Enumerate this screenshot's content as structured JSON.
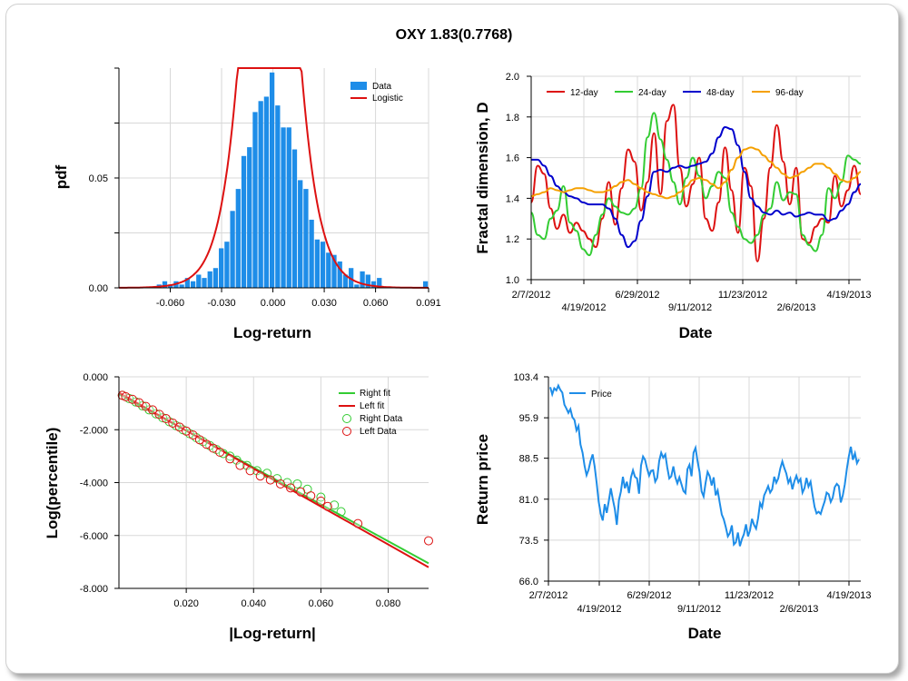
{
  "title": "OXY 1.83(0.7768)",
  "colors": {
    "blue": "#1e8de8",
    "red": "#dd1111",
    "green": "#33cc33",
    "navy": "#0000cc",
    "orange": "#f5a000"
  },
  "chart_data": [
    {
      "type": "bar",
      "panel": "histogram",
      "xlabel": "Log-return",
      "ylabel": "pdf",
      "xlim": [
        -0.09,
        0.091
      ],
      "ylim": [
        0,
        0.1
      ],
      "xticks": [
        -0.06,
        -0.03,
        0.0,
        0.03,
        0.06,
        0.091
      ],
      "xtick_labels": [
        "-0.060",
        "-0.030",
        "0.000",
        "0.030",
        "0.060",
        "0.091"
      ],
      "yticks": [
        0.0,
        0.05
      ],
      "ytick_labels": [
        "0.00",
        "0.05"
      ],
      "legend": [
        "Data",
        "Logistic"
      ],
      "bin_width": 0.0033,
      "bin_centers": [
        -0.0665,
        -0.0632,
        -0.0599,
        -0.0566,
        -0.0533,
        -0.05,
        -0.0467,
        -0.0434,
        -0.0401,
        -0.0368,
        -0.0335,
        -0.0302,
        -0.0269,
        -0.0236,
        -0.0203,
        -0.017,
        -0.0137,
        -0.0104,
        -0.0071,
        -0.0038,
        -0.0005,
        0.0028,
        0.0061,
        0.0094,
        0.0127,
        0.016,
        0.0193,
        0.0226,
        0.0259,
        0.0292,
        0.0325,
        0.0358,
        0.0391,
        0.0424,
        0.0457,
        0.049,
        0.0523,
        0.0556,
        0.0589,
        0.0622,
        0.0892
      ],
      "values": [
        0.0015,
        0.003,
        0.0015,
        0.003,
        0.0015,
        0.0045,
        0.003,
        0.006,
        0.0045,
        0.0075,
        0.009,
        0.018,
        0.021,
        0.035,
        0.045,
        0.06,
        0.064,
        0.08,
        0.085,
        0.087,
        0.098,
        0.083,
        0.073,
        0.073,
        0.063,
        0.049,
        0.045,
        0.031,
        0.022,
        0.021,
        0.016,
        0.015,
        0.012,
        0.006,
        0.009,
        0.0015,
        0.0075,
        0.006,
        0.003,
        0.0045,
        0.003
      ],
      "fit": {
        "name": "Logistic",
        "mu": -0.002,
        "s": 0.0085
      }
    },
    {
      "type": "line",
      "panel": "fractal",
      "xlabel": "Date",
      "ylabel": "Fractal dimension, D",
      "ylim": [
        1.0,
        2.0
      ],
      "yticks": [
        1.0,
        1.2,
        1.4,
        1.6,
        1.8,
        2.0
      ],
      "ytick_labels": [
        "1.0",
        "1.2",
        "1.4",
        "1.6",
        "1.8",
        "2.0"
      ],
      "date_labels_upper": [
        "2/7/2012",
        "6/29/2012",
        "11/23/2012",
        "4/19/2013"
      ],
      "date_labels_lower": [
        "4/19/2012",
        "9/11/2012",
        "2/6/2013"
      ],
      "series": [
        {
          "name": "12-day",
          "color": "red",
          "values": [
            1.38,
            1.56,
            1.52,
            1.35,
            1.25,
            1.32,
            1.23,
            1.28,
            1.24,
            1.2,
            1.16,
            1.3,
            1.48,
            1.27,
            1.45,
            1.64,
            1.58,
            1.34,
            1.48,
            1.72,
            1.42,
            1.78,
            1.86,
            1.55,
            1.36,
            1.47,
            1.6,
            1.3,
            1.24,
            1.38,
            1.65,
            1.44,
            1.23,
            1.55,
            1.46,
            1.09,
            1.3,
            1.55,
            1.76,
            1.58,
            1.37,
            1.55,
            1.2,
            1.18,
            1.26,
            1.3,
            1.28,
            1.51,
            1.36,
            1.44,
            1.56,
            1.42
          ]
        },
        {
          "name": "24-day",
          "color": "green",
          "values": [
            1.33,
            1.22,
            1.2,
            1.3,
            1.34,
            1.46,
            1.28,
            1.24,
            1.15,
            1.12,
            1.22,
            1.32,
            1.4,
            1.36,
            1.33,
            1.32,
            1.35,
            1.45,
            1.7,
            1.82,
            1.69,
            1.59,
            1.48,
            1.37,
            1.5,
            1.6,
            1.51,
            1.4,
            1.46,
            1.53,
            1.5,
            1.33,
            1.26,
            1.2,
            1.18,
            1.22,
            1.32,
            1.35,
            1.48,
            1.39,
            1.43,
            1.42,
            1.22,
            1.17,
            1.14,
            1.22,
            1.45,
            1.4,
            1.48,
            1.61,
            1.59,
            1.57
          ]
        },
        {
          "name": "48-day",
          "color": "navy",
          "values": [
            1.59,
            1.59,
            1.56,
            1.51,
            1.46,
            1.43,
            1.41,
            1.4,
            1.38,
            1.37,
            1.37,
            1.37,
            1.35,
            1.3,
            1.22,
            1.16,
            1.19,
            1.29,
            1.41,
            1.53,
            1.54,
            1.53,
            1.55,
            1.56,
            1.55,
            1.56,
            1.57,
            1.58,
            1.62,
            1.7,
            1.75,
            1.74,
            1.66,
            1.53,
            1.4,
            1.36,
            1.33,
            1.32,
            1.34,
            1.32,
            1.33,
            1.31,
            1.32,
            1.33,
            1.32,
            1.32,
            1.29,
            1.3,
            1.34,
            1.37,
            1.43,
            1.47
          ]
        },
        {
          "name": "96-day",
          "color": "orange",
          "values": [
            1.41,
            1.42,
            1.43,
            1.45,
            1.44,
            1.43,
            1.44,
            1.45,
            1.45,
            1.44,
            1.43,
            1.43,
            1.44,
            1.46,
            1.48,
            1.49,
            1.47,
            1.45,
            1.43,
            1.42,
            1.41,
            1.4,
            1.41,
            1.43,
            1.46,
            1.49,
            1.5,
            1.49,
            1.47,
            1.45,
            1.48,
            1.54,
            1.6,
            1.64,
            1.65,
            1.64,
            1.61,
            1.58,
            1.55,
            1.52,
            1.5,
            1.51,
            1.53,
            1.55,
            1.57,
            1.57,
            1.55,
            1.52,
            1.49,
            1.48,
            1.5,
            1.53
          ]
        }
      ]
    },
    {
      "type": "scatter",
      "panel": "tails",
      "xlabel": "|Log-return|",
      "ylabel": "Log(percentile)",
      "xlim": [
        0.0,
        0.092
      ],
      "ylim": [
        -8.0,
        0.0
      ],
      "xticks": [
        0.02,
        0.04,
        0.06,
        0.08
      ],
      "xtick_labels": [
        "0.020",
        "0.040",
        "0.060",
        "0.080"
      ],
      "yticks": [
        0.0,
        -2.0,
        -4.0,
        -6.0,
        -8.0
      ],
      "ytick_labels": [
        "0.000",
        "-2.000",
        "-4.000",
        "-6.000",
        "-8.000"
      ],
      "legend": [
        "Right fit",
        "Left fit",
        "Right Data",
        "Left Data"
      ],
      "fits": [
        {
          "name": "Right fit",
          "color": "green",
          "x": [
            0.0,
            0.092
          ],
          "y": [
            -0.65,
            -7.05
          ]
        },
        {
          "name": "Left fit",
          "color": "red",
          "x": [
            0.0,
            0.092
          ],
          "y": [
            -0.6,
            -7.2
          ]
        }
      ],
      "right_data": {
        "x": [
          0.001,
          0.003,
          0.005,
          0.007,
          0.009,
          0.011,
          0.013,
          0.015,
          0.017,
          0.019,
          0.021,
          0.023,
          0.025,
          0.027,
          0.029,
          0.031,
          0.033,
          0.035,
          0.038,
          0.041,
          0.044,
          0.047,
          0.05,
          0.053,
          0.056,
          0.06,
          0.064,
          0.066
        ],
        "y": [
          -0.7,
          -0.82,
          -0.95,
          -1.1,
          -1.25,
          -1.4,
          -1.55,
          -1.7,
          -1.85,
          -2.0,
          -2.15,
          -2.3,
          -2.45,
          -2.6,
          -2.75,
          -2.9,
          -3.0,
          -3.15,
          -3.35,
          -3.55,
          -3.65,
          -3.85,
          -4.0,
          -4.05,
          -4.25,
          -4.55,
          -4.85,
          -5.1
        ]
      },
      "left_data": {
        "x": [
          0.001,
          0.002,
          0.004,
          0.006,
          0.008,
          0.01,
          0.012,
          0.014,
          0.016,
          0.018,
          0.02,
          0.022,
          0.024,
          0.026,
          0.028,
          0.03,
          0.033,
          0.036,
          0.039,
          0.042,
          0.045,
          0.048,
          0.051,
          0.054,
          0.057,
          0.06,
          0.062,
          0.071,
          0.092
        ],
        "y": [
          -0.7,
          -0.75,
          -0.85,
          -0.98,
          -1.12,
          -1.25,
          -1.42,
          -1.58,
          -1.75,
          -1.9,
          -2.05,
          -2.2,
          -2.38,
          -2.55,
          -2.7,
          -2.85,
          -3.1,
          -3.35,
          -3.55,
          -3.75,
          -3.9,
          -4.05,
          -4.2,
          -4.35,
          -4.5,
          -4.7,
          -4.9,
          -5.55,
          -6.2
        ]
      }
    },
    {
      "type": "line",
      "panel": "price",
      "xlabel": "Date",
      "ylabel": "Return price",
      "ylim": [
        66.0,
        103.4
      ],
      "yticks": [
        66.0,
        73.5,
        81.0,
        88.5,
        95.9,
        103.4
      ],
      "ytick_labels": [
        "66.0",
        "73.5",
        "81.0",
        "88.5",
        "95.9",
        "103.4"
      ],
      "date_labels_upper": [
        "2/7/2012",
        "6/29/2012",
        "11/23/2012",
        "4/19/2013"
      ],
      "date_labels_lower": [
        "4/19/2012",
        "9/11/2012",
        "2/6/2013"
      ],
      "legend": [
        "Price"
      ],
      "series": [
        {
          "name": "Price",
          "color": "blue",
          "values": [
            101.5,
            100.2,
            101.3,
            100.9,
            101.8,
            101.0,
            100.5,
            98.3,
            97.6,
            96.8,
            97.5,
            96.0,
            95.5,
            93.6,
            94.4,
            91.0,
            89.5,
            87.1,
            85.4,
            86.4,
            88.0,
            89.2,
            87.0,
            84.0,
            80.6,
            78.3,
            77.1,
            80.1,
            78.5,
            80.6,
            83.0,
            81.0,
            79.2,
            76.3,
            80.8,
            82.4,
            85.1,
            83.0,
            84.2,
            82.1,
            85.0,
            86.3,
            85.1,
            84.8,
            82.0,
            87.2,
            88.8,
            88.2,
            86.6,
            85.3,
            86.2,
            86.3,
            84.2,
            84.9,
            88.0,
            89.5,
            88.6,
            89.2,
            86.8,
            84.8,
            85.2,
            87.0,
            85.0,
            83.9,
            85.0,
            83.8,
            82.5,
            82.1,
            86.5,
            87.3,
            85.2,
            89.5,
            90.4,
            88.0,
            86.0,
            82.4,
            81.5,
            84.0,
            86.0,
            85.2,
            83.5,
            85.0,
            81.7,
            82.6,
            80.3,
            78.2,
            77.3,
            75.9,
            74.2,
            74.8,
            76.2,
            72.7,
            73.1,
            74.9,
            72.4,
            73.7,
            74.6,
            76.4,
            74.2,
            75.3,
            77.4,
            76.3,
            75.6,
            77.5,
            80.3,
            79.5,
            81.7,
            82.5,
            83.4,
            82.2,
            82.8,
            85.1,
            84.0,
            84.8,
            86.6,
            87.9,
            86.7,
            85.7,
            84.0,
            84.8,
            82.8,
            84.3,
            85.3,
            84.1,
            84.7,
            82.2,
            83.0,
            84.9,
            83.3,
            84.2,
            81.8,
            79.6,
            78.4,
            78.7,
            78.3,
            79.5,
            80.6,
            82.2,
            81.9,
            80.5,
            81.3,
            83.2,
            83.8,
            83.4,
            80.4,
            81.7,
            83.7,
            86.6,
            88.9,
            90.6,
            88.2,
            89.4,
            87.6,
            88.3
          ]
        }
      ]
    }
  ]
}
